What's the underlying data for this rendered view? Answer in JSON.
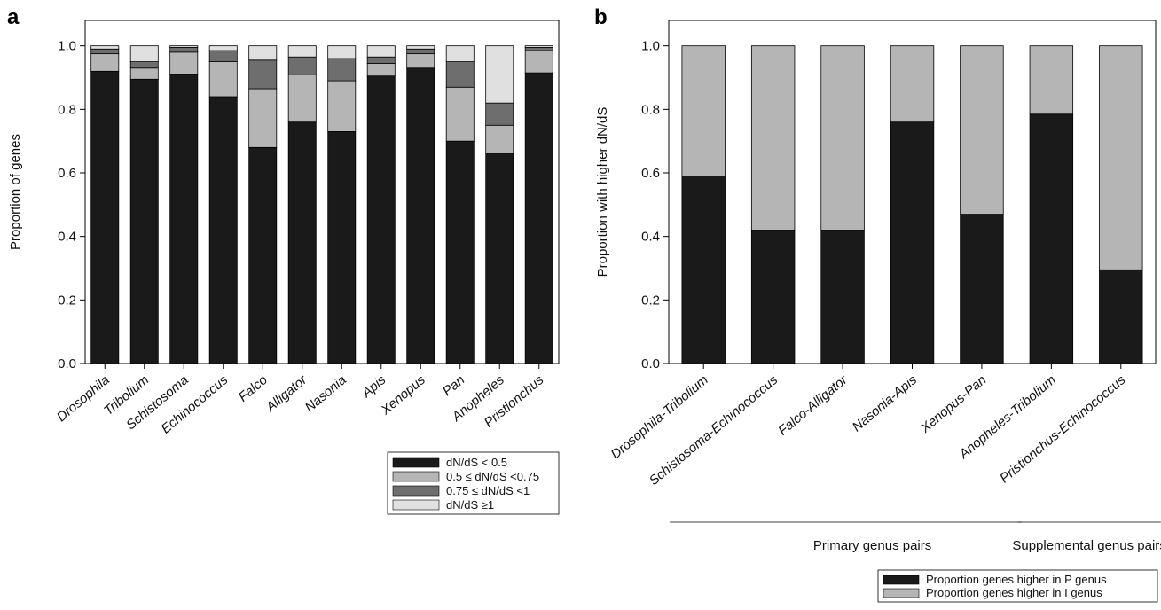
{
  "panels": {
    "a": "a",
    "b": "b"
  },
  "chart_data": [
    {
      "type": "bar",
      "stacked": true,
      "ylabel": "Proportion of genes",
      "ylim": [
        0,
        1.08
      ],
      "yticks": [
        "0.0",
        "0.2",
        "0.4",
        "0.6",
        "0.8",
        "1.0"
      ],
      "categories": [
        "Drosophila",
        "Tribolium",
        "Schistosoma",
        "Echinococcus",
        "Falco",
        "Alligator",
        "Nasonia",
        "Apis",
        "Xenopus",
        "Pan",
        "Anopheles",
        "Pristionchus"
      ],
      "series": [
        {
          "name": "dN/dS < 0.5",
          "color": "#1a1a1a",
          "values": [
            0.92,
            0.895,
            0.91,
            0.84,
            0.68,
            0.76,
            0.73,
            0.905,
            0.93,
            0.7,
            0.66,
            0.915
          ]
        },
        {
          "name": "0.5 ≤ dN/dS <0.75",
          "color": "#b5b5b5",
          "values": [
            0.055,
            0.035,
            0.07,
            0.11,
            0.185,
            0.15,
            0.16,
            0.04,
            0.045,
            0.17,
            0.09,
            0.07
          ]
        },
        {
          "name": "0.75 ≤ dN/dS <1",
          "color": "#6e6e6e",
          "values": [
            0.015,
            0.02,
            0.015,
            0.035,
            0.09,
            0.055,
            0.07,
            0.02,
            0.015,
            0.08,
            0.07,
            0.01
          ]
        },
        {
          "name": "dN/dS ≥1",
          "color": "#e0e0e0",
          "values": [
            0.01,
            0.05,
            0.005,
            0.015,
            0.045,
            0.035,
            0.04,
            0.035,
            0.01,
            0.05,
            0.18,
            0.005
          ]
        }
      ],
      "legend": "bottom-right"
    },
    {
      "type": "bar",
      "stacked": true,
      "ylabel": "Proportion with higher dN/dS",
      "ylim": [
        0,
        1.08
      ],
      "yticks": [
        "0.0",
        "0.2",
        "0.4",
        "0.6",
        "0.8",
        "1.0"
      ],
      "categories": [
        {
          "a": "Drosophila",
          "b": "Tribolium"
        },
        {
          "a": "Schistosoma",
          "b": "Echinococcus"
        },
        {
          "a": "Falco",
          "b": "Alligator"
        },
        {
          "a": "Nasonia",
          "b": "Apis"
        },
        {
          "a": "Xenopus",
          "b": "Pan"
        },
        {
          "a": "Anopheles",
          "b": "Tribolium"
        },
        {
          "a": "Pristionchus",
          "b": "Echinococcus"
        }
      ],
      "series": [
        {
          "name": "Proportion genes higher in P genus",
          "color": "#1a1a1a",
          "values": [
            0.59,
            0.42,
            0.42,
            0.76,
            0.47,
            0.785,
            0.295
          ]
        },
        {
          "name": "Proportion genes higher in I genus",
          "color": "#b5b5b5",
          "values": [
            0.41,
            0.58,
            0.58,
            0.24,
            0.53,
            0.215,
            0.705
          ]
        }
      ],
      "groups": [
        {
          "label": "Primary genus pairs",
          "from": 0,
          "to": 4
        },
        {
          "label": "Supplemental genus pairs",
          "from": 5,
          "to": 6
        }
      ],
      "legend": "bottom-right"
    }
  ]
}
